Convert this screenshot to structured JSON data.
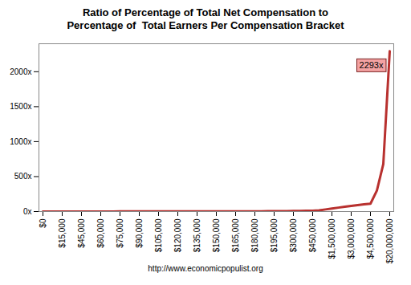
{
  "chart_data": {
    "type": "line",
    "title": "Ratio of Percentage of Total Net Compensation to\nPercentage of  Total Earners Per Compensation Bracket",
    "caption": "http://www.economicpopulist.org",
    "categories": [
      "$0",
      null,
      null,
      "$15,000",
      null,
      null,
      "$45,000",
      null,
      null,
      "$60,000",
      null,
      null,
      "$75,000",
      null,
      null,
      "$90,000",
      null,
      null,
      "$105,000",
      null,
      null,
      "$120,000",
      null,
      null,
      "$135,000",
      null,
      null,
      "$150,000",
      null,
      null,
      "$165,000",
      null,
      null,
      "$180,000",
      null,
      null,
      "$195,000",
      null,
      null,
      "$300,000",
      null,
      null,
      "$450,000",
      null,
      null,
      "$1,500,000",
      null,
      null,
      "$3,000,000",
      null,
      null,
      "$4,500,000",
      null,
      null,
      "$20,000,000"
    ],
    "values": [
      0.1,
      0.2,
      0.3,
      0.4,
      0.5,
      0.6,
      0.8,
      0.9,
      1.0,
      1.2,
      1.3,
      1.4,
      1.5,
      1.7,
      1.8,
      1.9,
      2.0,
      2.1,
      2.3,
      2.4,
      2.5,
      2.6,
      2.8,
      2.9,
      3.0,
      3.1,
      3.2,
      3.4,
      3.5,
      3.6,
      3.7,
      3.9,
      4.0,
      4.1,
      4.2,
      4.4,
      4.5,
      5.5,
      6.5,
      8,
      9,
      10.5,
      12,
      17,
      30,
      43,
      56,
      68,
      80,
      92,
      103,
      112,
      300,
      680,
      2293
    ],
    "data_labels": true,
    "value_labels": [
      null,
      null,
      null,
      null,
      null,
      null,
      null,
      null,
      null,
      null,
      null,
      null,
      null,
      null,
      null,
      null,
      null,
      null,
      null,
      null,
      null,
      null,
      null,
      null,
      null,
      null,
      null,
      null,
      null,
      null,
      null,
      null,
      null,
      null,
      null,
      null,
      null,
      null,
      null,
      null,
      null,
      null,
      null,
      null,
      null,
      null,
      null,
      null,
      null,
      null,
      null,
      null,
      null,
      null,
      "2293x"
    ],
    "color": "#b8312f",
    "ylim": [
      0,
      2400
    ],
    "yticks": [
      {
        "value": 0,
        "label": "0x"
      },
      {
        "value": 500,
        "label": "500x"
      },
      {
        "value": 1000,
        "label": "1000x"
      },
      {
        "value": 1500,
        "label": "1500x"
      },
      {
        "value": 2000,
        "label": "2000x"
      }
    ],
    "grid": false
  }
}
